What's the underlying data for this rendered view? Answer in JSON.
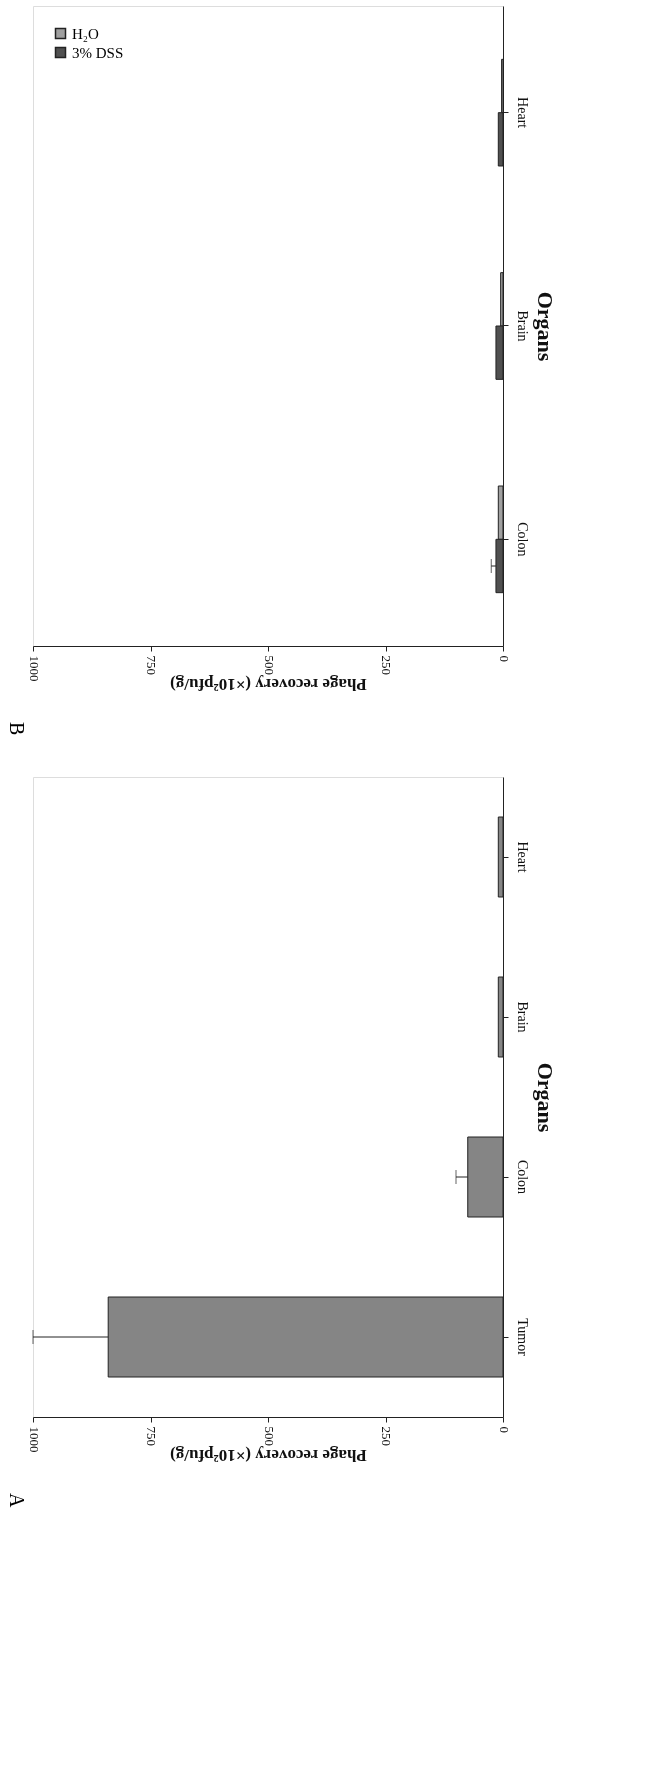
{
  "chart_data": [
    {
      "type": "bar",
      "title": "B",
      "orientation": "horizontal",
      "categories": [
        "Heart",
        "Brain",
        "Colon"
      ],
      "xlabel": "Phage recovery (×10²pfu/g)",
      "ylabel": "Organs",
      "xlim": [
        1000,
        0
      ],
      "xticks": [
        0,
        250,
        500,
        750,
        1000
      ],
      "grid": false,
      "legend": "top left",
      "series": [
        {
          "name": "H₂O",
          "color": "#a0a0a0",
          "values": [
            3,
            5,
            10
          ]
        },
        {
          "name": "3% DSS",
          "color": "#505050",
          "values": [
            10,
            15,
            15
          ],
          "errors": [
            null,
            null,
            10
          ]
        }
      ]
    },
    {
      "type": "bar",
      "title": "A",
      "orientation": "horizontal",
      "categories": [
        "Heart",
        "Brain",
        "Colon",
        "Tumor"
      ],
      "xlabel": "Phage recovery (×10²pfu/g)",
      "ylabel": "Organs",
      "xlim": [
        1000,
        0
      ],
      "xticks": [
        0,
        250,
        500,
        750,
        1000
      ],
      "grid": false,
      "values": [
        10,
        10,
        75,
        840
      ],
      "errors": [
        null,
        null,
        25,
        160
      ],
      "color": "#858585"
    }
  ]
}
